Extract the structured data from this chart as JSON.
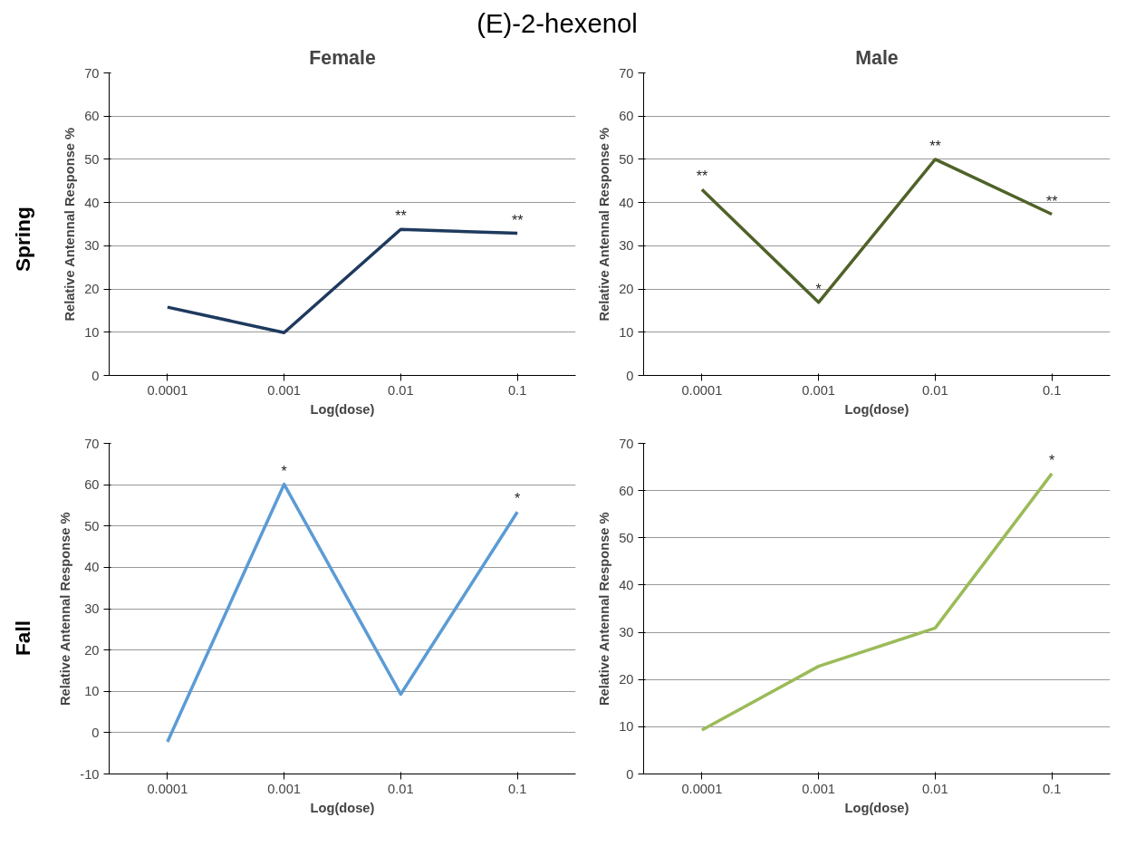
{
  "chart_data": [
    {
      "type": "line",
      "title": "(E)-2-hexenol",
      "subtitle": "Female",
      "annotations": [
        "Spring",
        {
          "text": "**",
          "x": "0.01",
          "y": 33.8
        },
        {
          "text": "**",
          "x": "0.1",
          "y": 32.9
        }
      ],
      "xlabel": "Log(dose)",
      "ylabel": "Relative Antennal Response %",
      "categories": [
        "0.0001",
        "0.001",
        "0.01",
        "0.1"
      ],
      "series": [
        {
          "color": "#1f3a5f",
          "values": [
            15.8,
            9.9,
            33.8,
            32.9
          ]
        }
      ],
      "ylim": [
        0,
        70
      ],
      "yticks": [
        0,
        10,
        20,
        30,
        40,
        50,
        60,
        70
      ],
      "grid": "y"
    },
    {
      "type": "line",
      "subtitle": "Male",
      "annotations": [
        {
          "text": "**",
          "x": "0.0001",
          "y": 43
        },
        {
          "text": "*",
          "x": "0.001",
          "y": 16.9
        },
        {
          "text": "**",
          "x": "0.01",
          "y": 50
        },
        {
          "text": "**",
          "x": "0.1",
          "y": 37.3
        }
      ],
      "xlabel": "Log(dose)",
      "ylabel": "Relative Antennal Response %",
      "categories": [
        "0.0001",
        "0.001",
        "0.01",
        "0.1"
      ],
      "series": [
        {
          "color": "#4f6228",
          "values": [
            43,
            16.9,
            50,
            37.3
          ]
        }
      ],
      "ylim": [
        0,
        70
      ],
      "yticks": [
        0,
        10,
        20,
        30,
        40,
        50,
        60,
        70
      ],
      "grid": "y"
    },
    {
      "type": "line",
      "annotations": [
        "Fall",
        {
          "text": "*",
          "x": "0.001",
          "y": 60.1
        },
        {
          "text": "*",
          "x": "0.1",
          "y": 53.4
        }
      ],
      "xlabel": "Log(dose)",
      "ylabel": "Relative Antennal Response %",
      "categories": [
        "0.0001",
        "0.001",
        "0.01",
        "0.1"
      ],
      "series": [
        {
          "color": "#5b9bd5",
          "values": [
            -2.2,
            60.1,
            9.3,
            53.4
          ]
        }
      ],
      "ylim": [
        -10,
        70
      ],
      "yticks": [
        -10,
        0,
        10,
        20,
        30,
        40,
        50,
        60,
        70
      ],
      "grid": "y"
    },
    {
      "type": "line",
      "annotations": [
        {
          "text": "*",
          "x": "0.1",
          "y": 63.6
        }
      ],
      "xlabel": "Log(dose)",
      "ylabel": "Relative Antennal Response %",
      "categories": [
        "0.0001",
        "0.001",
        "0.01",
        "0.1"
      ],
      "series": [
        {
          "color": "#9bbb59",
          "values": [
            9.3,
            22.8,
            30.9,
            63.6
          ]
        }
      ],
      "ylim": [
        0,
        70
      ],
      "yticks": [
        0,
        10,
        20,
        30,
        40,
        50,
        60,
        70
      ],
      "grid": "y"
    }
  ]
}
